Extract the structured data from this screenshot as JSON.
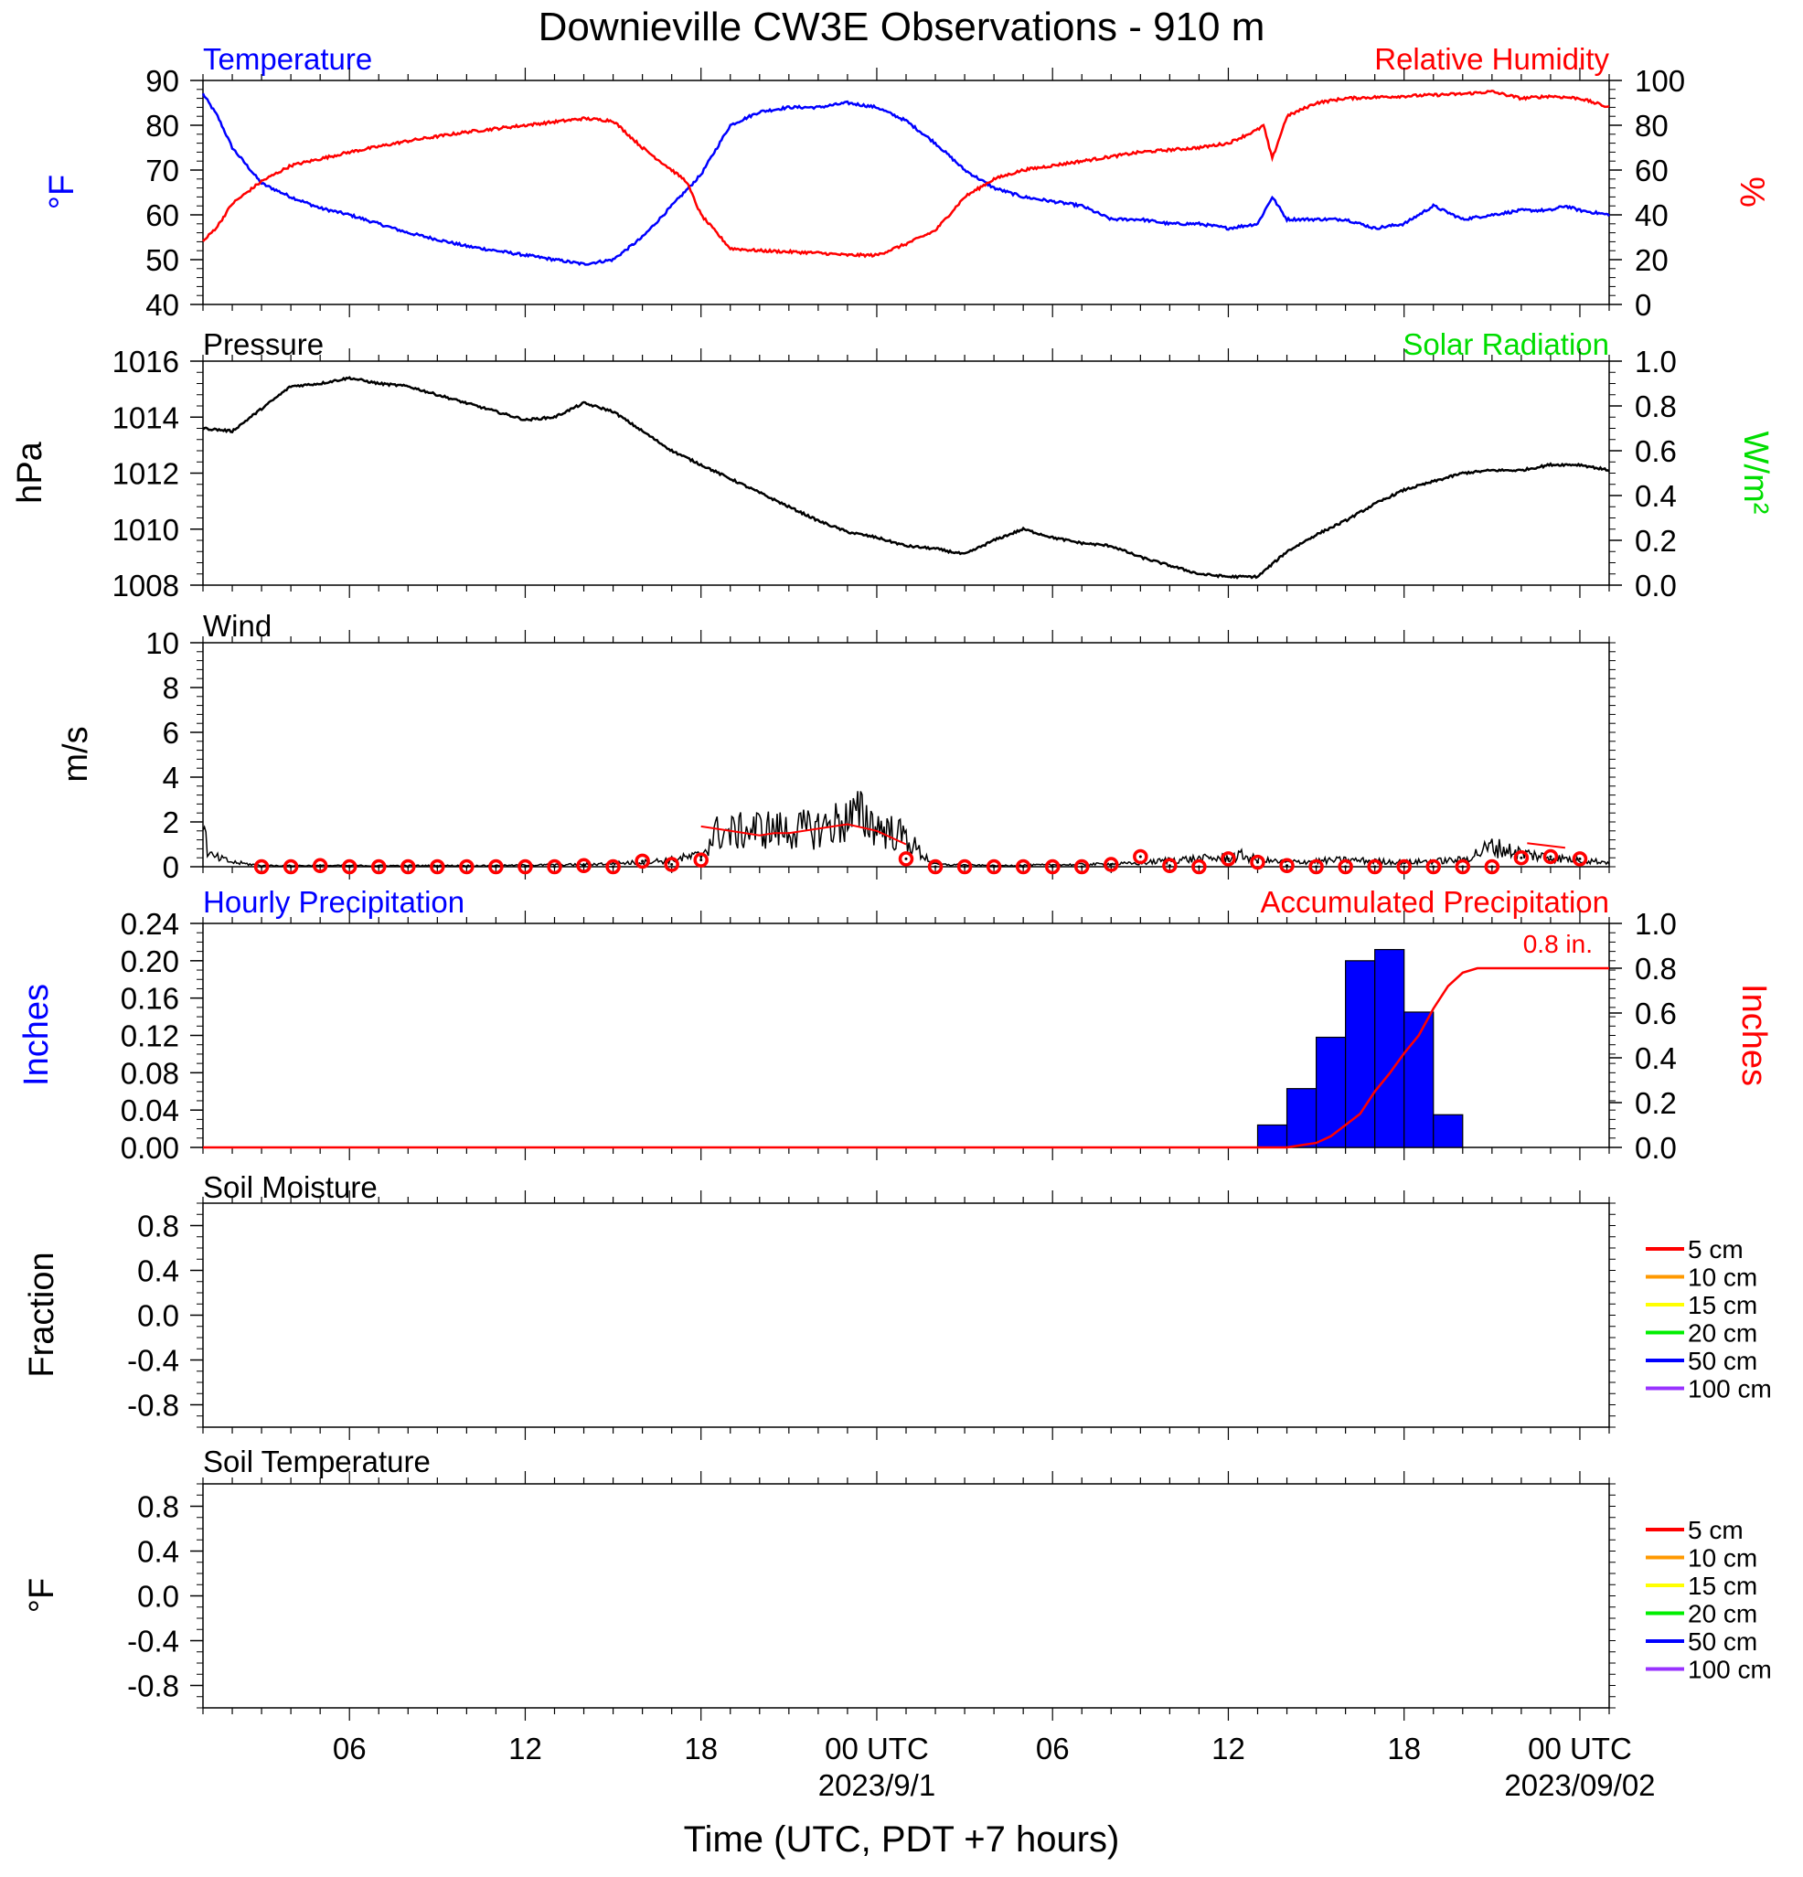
{
  "title": "Downieville CW3E Observations - 910 m",
  "time_axis": {
    "ticks": [
      {
        "hour": 6,
        "label": "06",
        "sublabel": ""
      },
      {
        "hour": 12,
        "label": "12",
        "sublabel": ""
      },
      {
        "hour": 18,
        "label": "18",
        "sublabel": ""
      },
      {
        "hour": 24,
        "label": "00 UTC",
        "sublabel": "2023/9/1"
      },
      {
        "hour": 30,
        "label": "06",
        "sublabel": ""
      },
      {
        "hour": 36,
        "label": "12",
        "sublabel": ""
      },
      {
        "hour": 42,
        "label": "18",
        "sublabel": ""
      },
      {
        "hour": 48,
        "label": "00 UTC",
        "sublabel": "2023/09/02"
      }
    ],
    "xlabel": "Time (UTC, PDT +7 hours)",
    "range_hours": [
      1,
      49
    ]
  },
  "panel_labels": {
    "temperature": "Temperature",
    "relative_humidity": "Relative Humidity",
    "temperature_unit": "°F",
    "humidity_unit": "%",
    "pressure": "Pressure",
    "solar_radiation": "Solar Radiation",
    "pressure_unit": "hPa",
    "solar_unit": "W/m²",
    "wind": "Wind",
    "wind_unit": "m/s",
    "hourly_precip": "Hourly Precipitation",
    "accum_precip": "Accumulated Precipitation",
    "precip_unit_left": "Inches",
    "precip_unit_right": "Inches",
    "accum_annotation": "0.8 in.",
    "soil_moisture": "Soil Moisture",
    "soil_moisture_unit": "Fraction",
    "soil_temperature": "Soil Temperature",
    "soil_temperature_unit": "°F"
  },
  "colors": {
    "temperature": "#0000ff",
    "humidity": "#ff0000",
    "pressure": "#000000",
    "solar": "#00dd00",
    "wind": "#000000",
    "gust": "#ff0000",
    "hourly_precip": "#0000ff",
    "accum_precip": "#ff0000"
  },
  "soil_legend": [
    {
      "label": "5 cm",
      "color": "#ff0000"
    },
    {
      "label": "10 cm",
      "color": "#ff9900"
    },
    {
      "label": "15 cm",
      "color": "#ffff00"
    },
    {
      "label": "20 cm",
      "color": "#00ee00"
    },
    {
      "label": "50 cm",
      "color": "#0000ff"
    },
    {
      "label": "100 cm",
      "color": "#9933ff"
    }
  ],
  "chart_data": [
    {
      "type": "line",
      "panel": "temperature_humidity",
      "left_axis": {
        "ylim": [
          40,
          90
        ],
        "ticks": [
          "40",
          "50",
          "60",
          "70",
          "80",
          "90"
        ]
      },
      "right_axis": {
        "ylim": [
          0,
          100
        ],
        "ticks": [
          "0",
          "20",
          "40",
          "60",
          "80",
          "100"
        ]
      },
      "series": [
        {
          "name": "Temperature",
          "axis": "left",
          "x": [
            1,
            1.5,
            2,
            3,
            4,
            5,
            6,
            8,
            10,
            12,
            14,
            15,
            16,
            17,
            18,
            19,
            20,
            21,
            22,
            23,
            24,
            25,
            26,
            27,
            28,
            29,
            30,
            31,
            32,
            33,
            34,
            35,
            36,
            37,
            37.5,
            38,
            39,
            40,
            41,
            42,
            43,
            44,
            45,
            46,
            47,
            47.5,
            48,
            49
          ],
          "y": [
            87,
            82,
            75,
            67,
            64,
            61.5,
            60,
            56,
            53,
            51,
            49,
            50,
            55,
            62,
            69,
            80,
            83,
            84,
            84,
            85,
            84,
            81,
            76,
            70,
            66,
            64,
            63,
            62,
            59,
            59,
            58,
            58,
            57,
            58,
            64,
            59,
            59,
            59,
            57,
            58,
            62,
            59,
            60,
            61,
            61,
            62,
            61,
            60
          ]
        },
        {
          "name": "Relative Humidity",
          "axis": "right",
          "x": [
            1,
            1.5,
            2,
            3,
            4,
            6,
            8,
            10,
            12,
            14,
            15,
            16,
            17,
            17.5,
            18,
            19,
            20,
            22,
            23,
            24,
            25,
            26,
            27,
            28,
            29,
            30,
            31,
            32,
            33,
            34,
            35,
            36,
            36.5,
            37,
            37.2,
            37.5,
            38,
            39,
            40,
            42,
            44,
            45,
            46,
            47,
            48,
            49
          ],
          "y": [
            28,
            35,
            45,
            55,
            62,
            68,
            73,
            77,
            80,
            83,
            82,
            70,
            60,
            55,
            40,
            25,
            24,
            23,
            22,
            22,
            27,
            33,
            48,
            56,
            60,
            62,
            64,
            66,
            68,
            69,
            70,
            72,
            75,
            78,
            80,
            65,
            84,
            90,
            92,
            93,
            94,
            95,
            92,
            93,
            92,
            88
          ]
        }
      ]
    },
    {
      "type": "line",
      "panel": "pressure_solar",
      "left_axis": {
        "ylim": [
          1008,
          1016
        ],
        "ticks": [
          "1008",
          "1010",
          "1012",
          "1014",
          "1016"
        ]
      },
      "right_axis": {
        "ylim": [
          0,
          1
        ],
        "ticks": [
          "0.0",
          "0.2",
          "0.4",
          "0.6",
          "0.8",
          "1.0"
        ]
      },
      "series": [
        {
          "name": "Pressure",
          "axis": "left",
          "x": [
            1,
            2,
            3,
            4,
            5,
            6,
            7,
            8,
            9,
            10,
            11,
            12,
            13,
            14,
            15,
            16,
            17,
            18,
            19,
            20,
            21,
            22,
            23,
            24,
            25,
            26,
            27,
            28,
            29,
            30,
            31,
            32,
            33,
            34,
            35,
            36,
            37,
            38,
            39,
            40,
            41,
            42,
            43,
            44,
            45,
            46,
            47,
            48,
            49
          ],
          "y": [
            1013.6,
            1013.5,
            1014.3,
            1015.1,
            1015.2,
            1015.4,
            1015.2,
            1015.1,
            1014.8,
            1014.5,
            1014.2,
            1013.9,
            1014.0,
            1014.5,
            1014.2,
            1013.5,
            1012.8,
            1012.3,
            1011.8,
            1011.3,
            1010.8,
            1010.3,
            1009.9,
            1009.7,
            1009.4,
            1009.3,
            1009.1,
            1009.6,
            1010.0,
            1009.7,
            1009.5,
            1009.4,
            1009.0,
            1008.7,
            1008.4,
            1008.3,
            1008.3,
            1009.2,
            1009.8,
            1010.3,
            1010.9,
            1011.4,
            1011.7,
            1012.0,
            1012.1,
            1012.1,
            1012.3,
            1012.3,
            1012.1
          ]
        }
      ]
    },
    {
      "type": "line",
      "panel": "wind",
      "ylim": [
        0,
        10
      ],
      "ticks": [
        "0",
        "2",
        "4",
        "6",
        "8",
        "10"
      ],
      "series": [
        {
          "name": "Wind",
          "x": [
            1,
            1.2,
            2,
            3,
            5,
            8,
            11,
            14,
            16,
            17,
            18,
            18.5,
            19,
            20,
            21,
            22,
            23,
            23.5,
            24,
            25,
            25.5,
            26,
            28,
            31,
            33,
            34,
            36,
            36.5,
            37,
            38,
            40,
            42,
            43,
            44,
            45,
            46,
            47,
            48,
            49
          ],
          "y": [
            1.8,
            0.5,
            0.2,
            0.05,
            0.05,
            0.05,
            0.05,
            0.1,
            0.2,
            0.3,
            0.5,
            1.5,
            1.5,
            1.7,
            1.6,
            1.7,
            2.1,
            2.3,
            1.8,
            1.3,
            0.6,
            0.1,
            0.05,
            0.1,
            0.15,
            0.3,
            0.4,
            0.5,
            0.3,
            0.2,
            0.3,
            0.2,
            0.25,
            0.3,
            0.9,
            0.6,
            0.4,
            0.3,
            0.2
          ]
        },
        {
          "name": "",
          "x": [
            3,
            4,
            5,
            6,
            7,
            8,
            9,
            10,
            11,
            12,
            13,
            14,
            15,
            16,
            17,
            18,
            25,
            26,
            27,
            28,
            29,
            30,
            31,
            32,
            33,
            34,
            35,
            36,
            37,
            38,
            39,
            40,
            41,
            42,
            43,
            44,
            45,
            46,
            47,
            48
          ],
          "y": [
            0,
            0,
            0.05,
            0,
            0,
            0,
            0,
            0,
            0,
            0,
            0,
            0.05,
            0,
            0.25,
            0.1,
            0.3,
            0.35,
            0,
            0,
            0,
            0,
            0,
            0,
            0.1,
            0.45,
            0.05,
            0,
            0.35,
            0.2,
            0.05,
            0,
            0,
            0,
            0,
            0,
            0,
            0,
            0.4,
            0.45,
            0.35
          ]
        }
      ],
      "gust_segments": [
        {
          "x": [
            18,
            19,
            20,
            20.5,
            21,
            22,
            23,
            24,
            25
          ],
          "y": [
            1.8,
            1.6,
            1.4,
            1.5,
            1.5,
            1.7,
            1.9,
            1.6,
            1.0
          ]
        },
        {
          "x": [
            46.2,
            47.5
          ],
          "y": [
            1.05,
            0.85
          ]
        }
      ]
    },
    {
      "type": "bar",
      "panel": "precipitation",
      "left_axis": {
        "ylim": [
          0,
          0.24
        ],
        "ticks": [
          "0.00",
          "0.04",
          "0.08",
          "0.12",
          "0.16",
          "0.20",
          "0.24"
        ]
      },
      "right_axis": {
        "ylim": [
          0,
          1
        ],
        "ticks": [
          "0.0",
          "0.2",
          "0.4",
          "0.6",
          "0.8",
          "1.0"
        ]
      },
      "series": [
        {
          "name": "Hourly Precipitation",
          "axis": "left",
          "x": [
            38,
            39,
            40,
            41,
            42,
            43,
            44
          ],
          "values": [
            0.024,
            0.063,
            0.118,
            0.2,
            0.212,
            0.145,
            0.035
          ]
        },
        {
          "name": "Accumulated Precipitation",
          "axis": "right",
          "x": [
            1,
            38,
            38.5,
            39,
            39.5,
            40,
            40.5,
            41,
            41.5,
            42,
            42.5,
            43,
            43.5,
            44,
            44.5,
            45,
            49
          ],
          "y": [
            0,
            0,
            0.01,
            0.02,
            0.05,
            0.1,
            0.15,
            0.25,
            0.33,
            0.42,
            0.5,
            0.62,
            0.72,
            0.78,
            0.8,
            0.8,
            0.8
          ]
        }
      ]
    },
    {
      "type": "line",
      "panel": "soil_moisture",
      "ylim": [
        -1,
        1
      ],
      "ticks": [
        "-0.8",
        "-0.4",
        "0.0",
        "0.4",
        "0.8"
      ],
      "series": []
    },
    {
      "type": "line",
      "panel": "soil_temperature",
      "ylim": [
        -1,
        1
      ],
      "ticks": [
        "-0.8",
        "-0.4",
        "0.0",
        "0.4",
        "0.8"
      ],
      "series": []
    }
  ]
}
